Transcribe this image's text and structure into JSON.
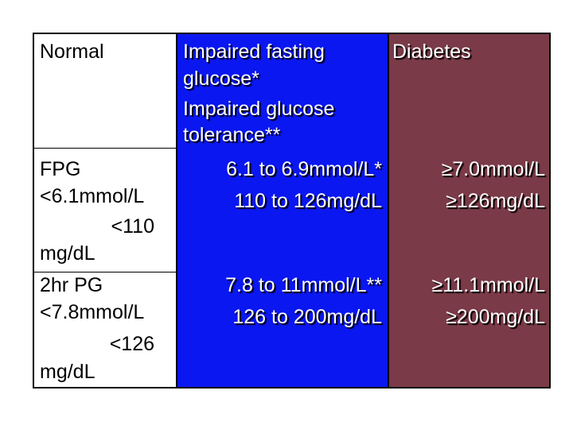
{
  "header": {
    "normal": "Normal",
    "ifg_line1": "Impaired fasting",
    "ifg_line2": "glucose*",
    "igt_line1": "Impaired glucose",
    "igt_line2": "tolerance**",
    "diabetes": "Diabetes"
  },
  "fpg": {
    "label": "FPG",
    "normal_mmol": "<6.1mmol/L",
    "normal_mg_a": "<110",
    "normal_mg_b": "mg/dL",
    "impaired_mmol": "6.1 to 6.9mmol/L*",
    "impaired_mg": "110 to 126mg/dL",
    "diabetes_mmol": "≥7.0mmol/L",
    "diabetes_mg": "≥126mg/dL"
  },
  "pg2hr": {
    "label": "2hr PG",
    "normal_mmol": "<7.8mmol/L",
    "normal_mg_a": "<126",
    "normal_mg_b": "mg/dL",
    "impaired_mmol": "7.8 to 11mmol/L**",
    "impaired_mg": "126 to 200mg/dL",
    "diabetes_mmol": "≥11.1mmol/L",
    "diabetes_mg": "≥200mg/dL"
  },
  "colors": {
    "impaired_bg": "#0a17f0",
    "diabetes_bg": "#7a3a47"
  }
}
